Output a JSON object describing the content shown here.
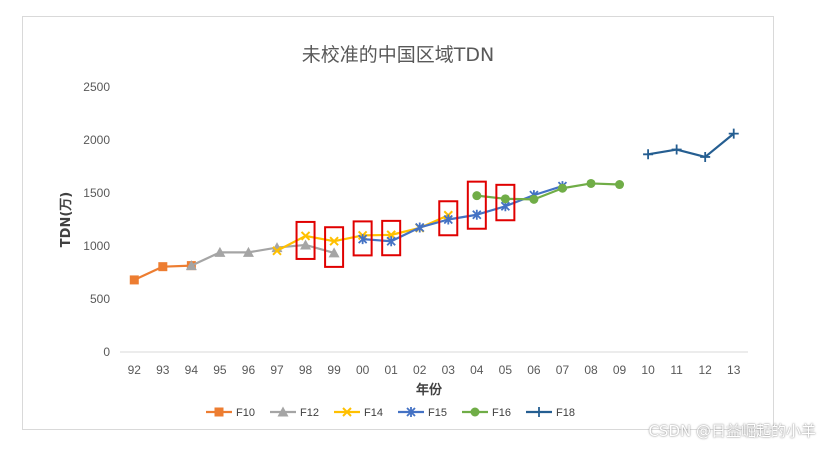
{
  "chart_data": {
    "type": "line",
    "title": "未校准的中国区域TDN",
    "xlabel": "年份",
    "ylabel": "TDN(万)",
    "ylim": [
      0,
      2500
    ],
    "yticks": [
      0,
      500,
      1000,
      1500,
      2000,
      2500
    ],
    "categories": [
      "92",
      "93",
      "94",
      "95",
      "96",
      "97",
      "98",
      "99",
      "00",
      "01",
      "02",
      "03",
      "04",
      "05",
      "06",
      "07",
      "08",
      "09",
      "10",
      "11",
      "12",
      "13"
    ],
    "grid": false,
    "legend_position": "bottom",
    "series": [
      {
        "name": "F10",
        "color": "#ed7d31",
        "marker": "square",
        "values": [
          680,
          805,
          815,
          null,
          null,
          null,
          null,
          null,
          null,
          null,
          null,
          null,
          null,
          null,
          null,
          null,
          null,
          null,
          null,
          null,
          null,
          null
        ]
      },
      {
        "name": "F12",
        "color": "#a5a5a5",
        "marker": "triangle",
        "values": [
          null,
          null,
          815,
          940,
          940,
          985,
          1010,
          935,
          null,
          null,
          null,
          null,
          null,
          null,
          null,
          null,
          null,
          null,
          null,
          null,
          null,
          null
        ]
      },
      {
        "name": "F14",
        "color": "#ffc000",
        "marker": "x",
        "values": [
          null,
          null,
          null,
          null,
          null,
          955,
          1095,
          1045,
          1100,
          1105,
          1170,
          1290,
          null,
          null,
          null,
          null,
          null,
          null,
          null,
          null,
          null,
          null
        ]
      },
      {
        "name": "F15",
        "color": "#4472c4",
        "marker": "star",
        "values": [
          null,
          null,
          null,
          null,
          null,
          null,
          null,
          null,
          1065,
          1045,
          1175,
          1250,
          1295,
          1375,
          1480,
          1565,
          null,
          null,
          null,
          null,
          null,
          null
        ]
      },
      {
        "name": "F16",
        "color": "#70ad47",
        "marker": "circle",
        "values": [
          null,
          null,
          null,
          null,
          null,
          null,
          null,
          null,
          null,
          null,
          null,
          null,
          1475,
          1445,
          1440,
          1545,
          1590,
          1580,
          null,
          null,
          null,
          null
        ]
      },
      {
        "name": "F18",
        "color": "#255e91",
        "marker": "plus",
        "values": [
          null,
          null,
          null,
          null,
          null,
          null,
          null,
          null,
          null,
          null,
          null,
          null,
          null,
          null,
          null,
          null,
          null,
          null,
          1865,
          1910,
          1840,
          2060
        ]
      }
    ],
    "highlight_boxes": [
      "98",
      "99",
      "00",
      "01",
      "03",
      "04",
      "05"
    ]
  },
  "watermark": "CSDN @日益崛起的小羊"
}
